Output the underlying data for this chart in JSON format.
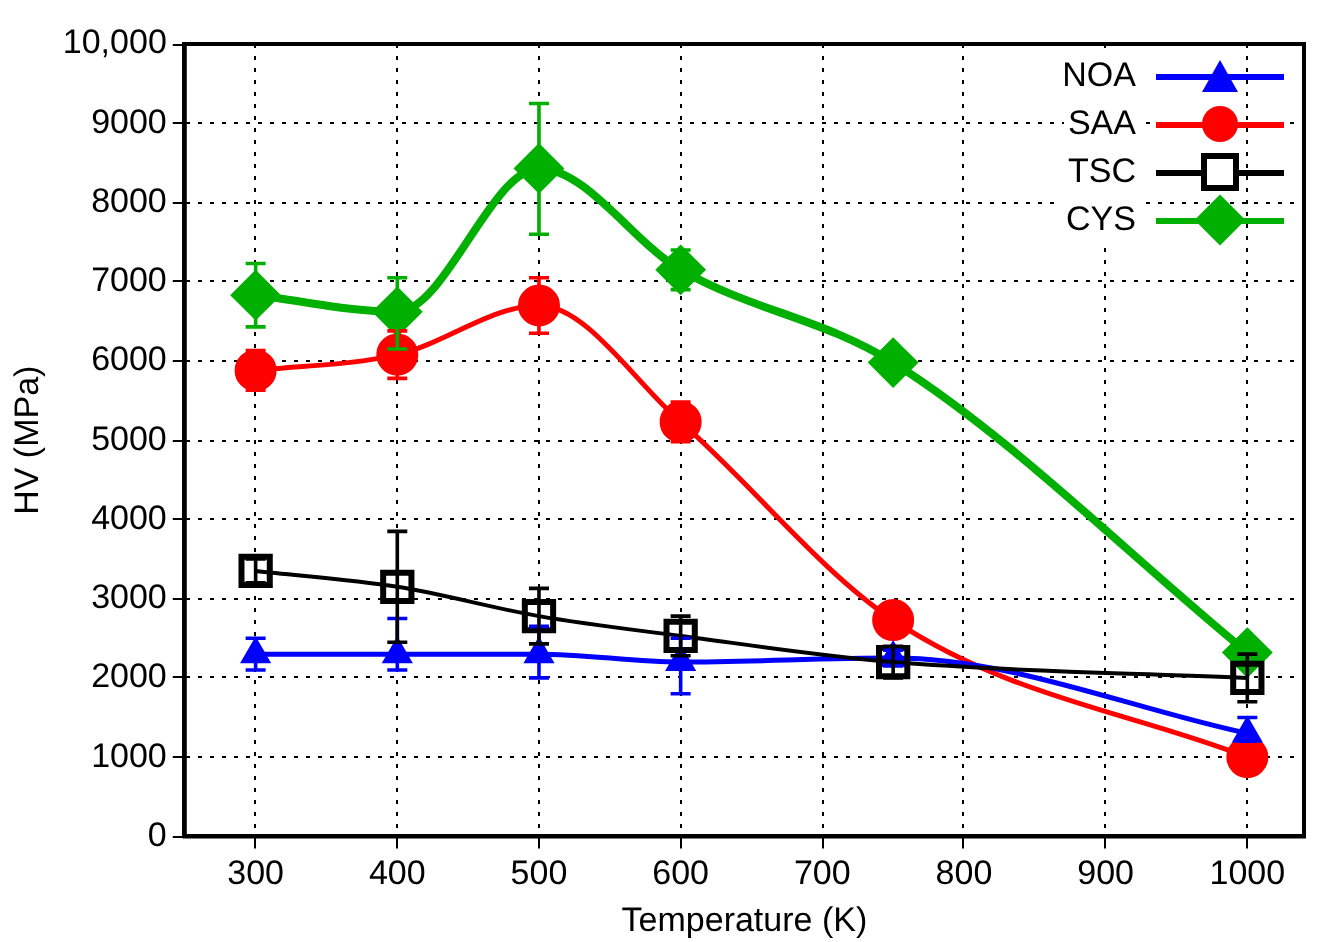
{
  "chart_data": {
    "type": "line",
    "xlabel": "Temperature (K)",
    "ylabel": "HV (MPa)",
    "x": [
      300,
      400,
      500,
      600,
      750,
      1000
    ],
    "xlim": [
      250,
      1040
    ],
    "xticks": [
      300,
      400,
      500,
      600,
      700,
      800,
      900,
      1000
    ],
    "ylim": [
      0,
      10000
    ],
    "yticks": [
      0,
      1000,
      2000,
      3000,
      4000,
      5000,
      6000,
      7000,
      8000,
      9000,
      {
        "value": 10000,
        "label": "10,000"
      }
    ],
    "grid": true,
    "legend": "top right",
    "line_style": "solid",
    "series": [
      {
        "name": "NOA",
        "color": "#0000ff",
        "marker": "triangle",
        "values": [
          2300,
          2300,
          2300,
          2200,
          2250,
          1300
        ],
        "errors": [
          200,
          [
            2100,
            2750
          ],
          [
            2000,
            2650
          ],
          [
            1800,
            2500
          ],
          100,
          [
            1200,
            1500
          ]
        ]
      },
      {
        "name": "SAA",
        "color": "#ff0000",
        "marker": "circle",
        "values": [
          5880,
          6080,
          6700,
          5230,
          2730,
          1000
        ],
        "errors": [
          250,
          300,
          350,
          250,
          null,
          null
        ]
      },
      {
        "name": "TSC",
        "color": "#000000",
        "marker": "square",
        "values": [
          3350,
          3150,
          2780,
          2530,
          2200,
          2000
        ],
        "errors": [
          150,
          [
            2450,
            3850
          ],
          350,
          250,
          200,
          300
        ]
      },
      {
        "name": "CYS",
        "color": "#00b000",
        "marker": "diamond",
        "values": [
          6830,
          6620,
          8430,
          7150,
          5980,
          2320
        ],
        "errors": [
          400,
          [
            6150,
            7050
          ],
          [
            7600,
            9250
          ],
          250,
          null,
          null
        ]
      }
    ]
  }
}
